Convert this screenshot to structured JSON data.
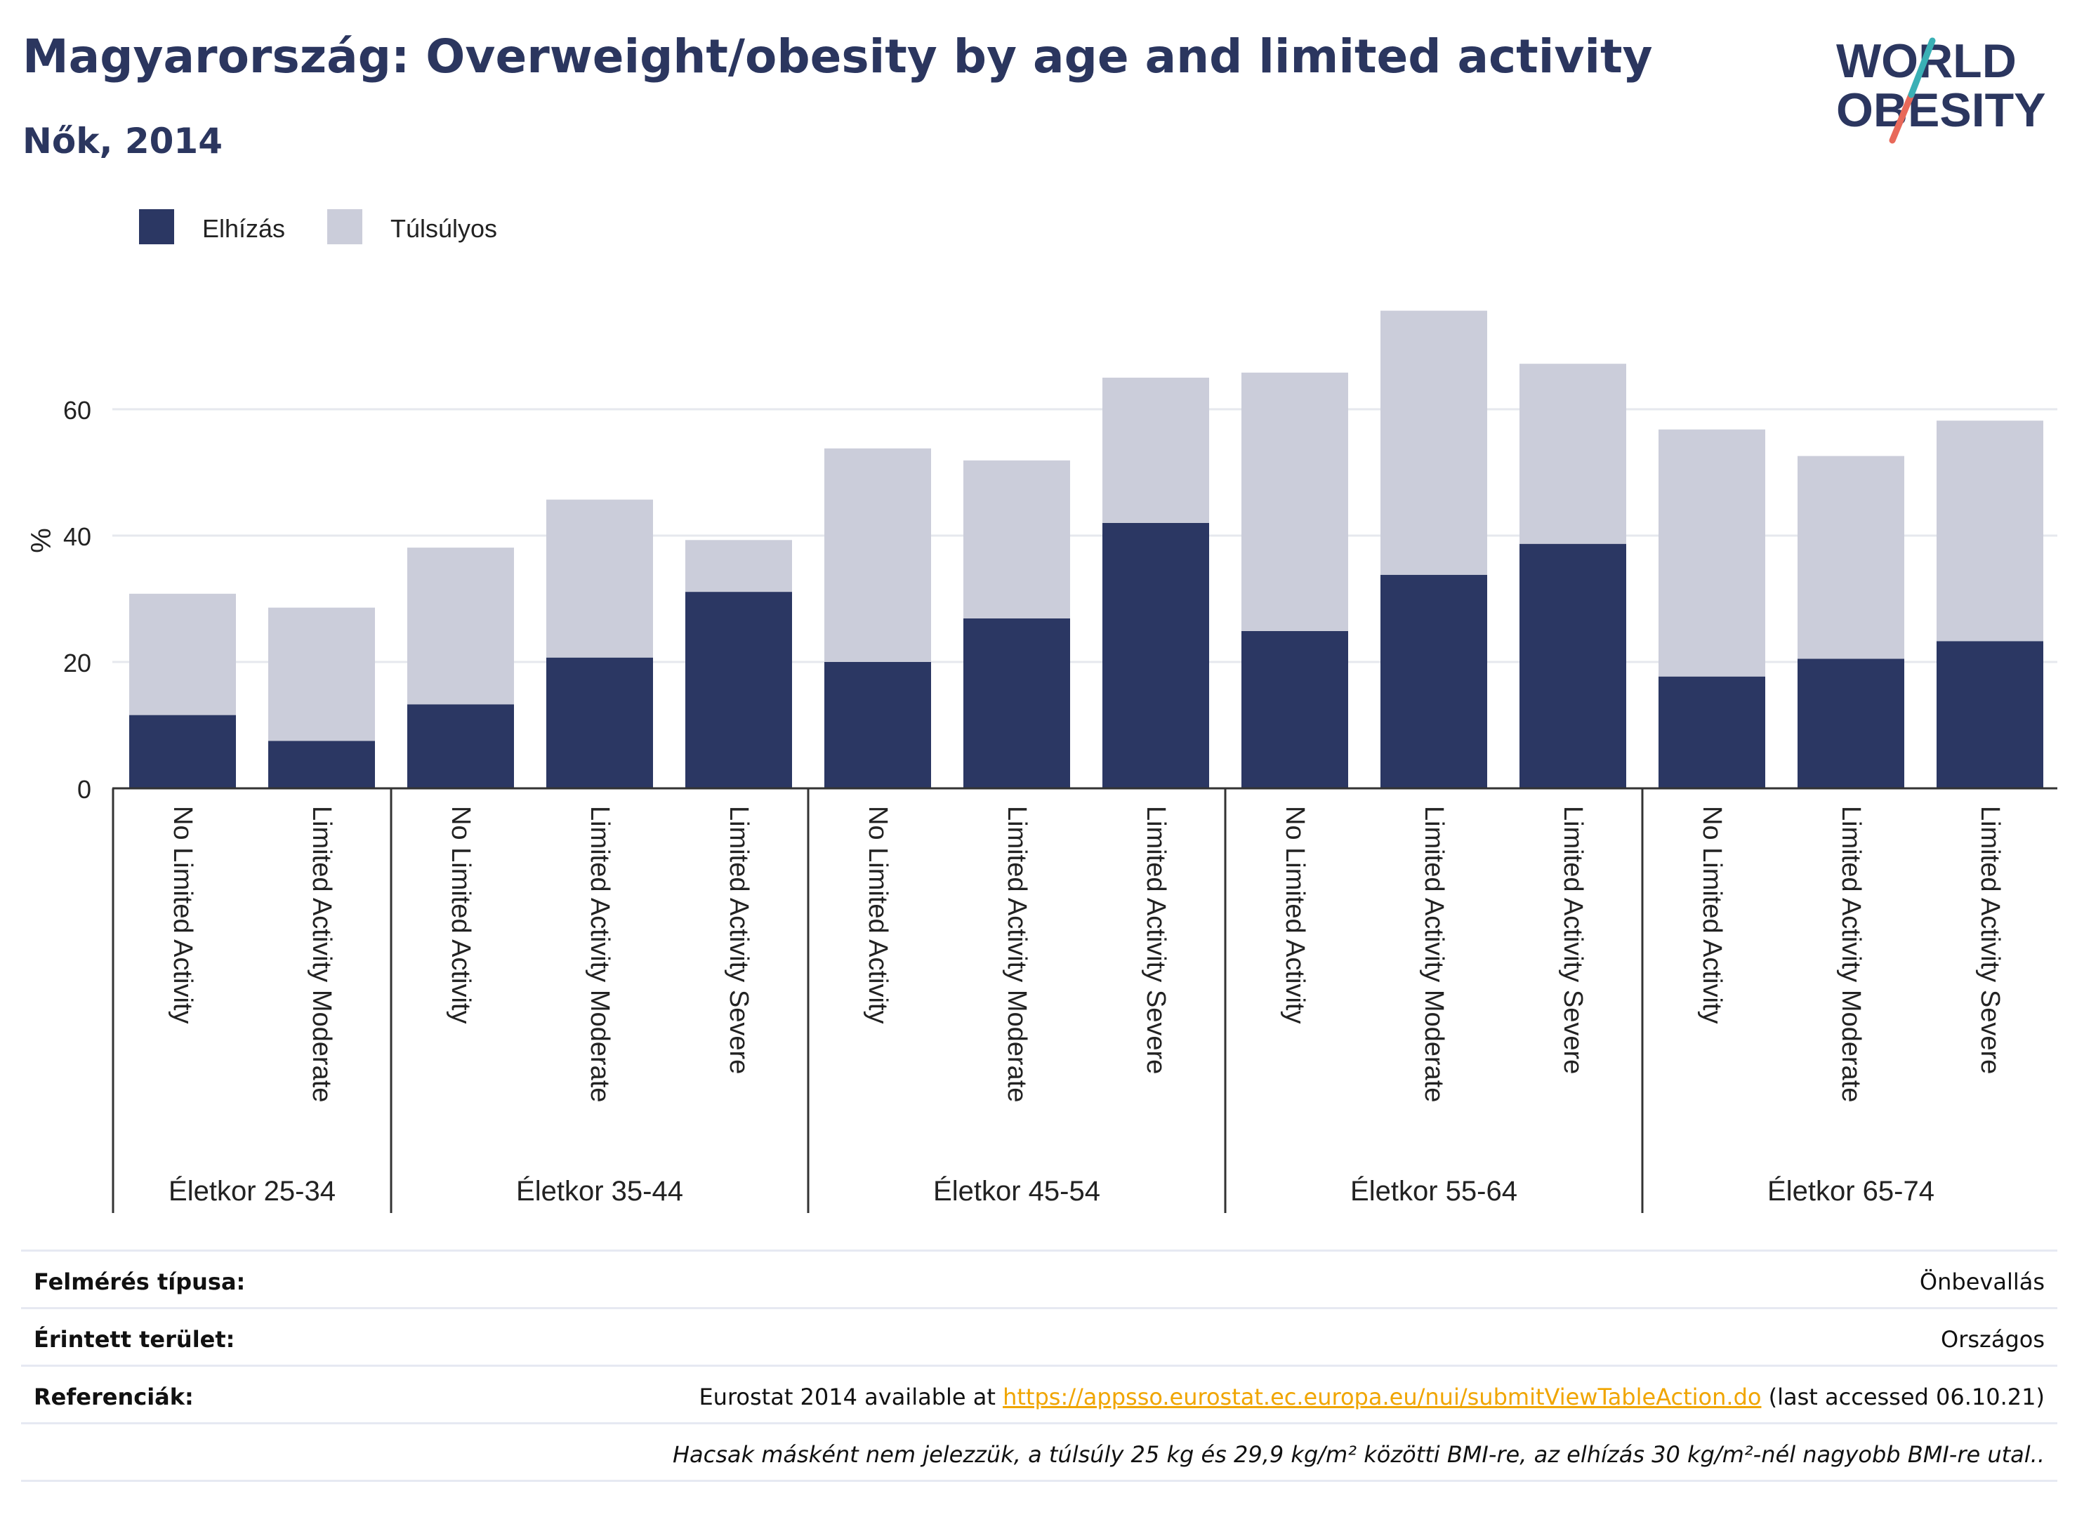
{
  "header": {
    "title": "Magyarország: Overweight/obesity by age and limited activity",
    "subtitle": "Nők, 2014",
    "logo_line1": "WORLD",
    "logo_line2": "OBESITY"
  },
  "colors": {
    "obese": "#2b3763",
    "overweight": "#cbcdda",
    "text": "#2b365f",
    "link": "#f0a500"
  },
  "chart_data": {
    "type": "bar",
    "stacked": true,
    "ylabel": "%",
    "xlabel": "",
    "ylim": [
      0,
      78
    ],
    "yticks": [
      0,
      20,
      40,
      60
    ],
    "grid": true,
    "legend_position": "top-left",
    "groups": [
      {
        "label": "Életkor 25-34",
        "categories": [
          "No Limited Activity",
          "Limited Activity Moderate"
        ]
      },
      {
        "label": "Életkor 35-44",
        "categories": [
          "No Limited Activity",
          "Limited Activity Moderate",
          "Limited Activity Severe"
        ]
      },
      {
        "label": "Életkor 45-54",
        "categories": [
          "No Limited Activity",
          "Limited Activity Moderate",
          "Limited Activity Severe"
        ]
      },
      {
        "label": "Életkor 55-64",
        "categories": [
          "No Limited Activity",
          "Limited Activity Moderate",
          "Limited Activity Severe"
        ]
      },
      {
        "label": "Életkor 65-74",
        "categories": [
          "No Limited Activity",
          "Limited Activity Moderate",
          "Limited Activity Severe"
        ]
      }
    ],
    "series": [
      {
        "name": "Elhízás",
        "color": "#2b3763",
        "values": [
          11.6,
          7.5,
          13.3,
          20.7,
          31.1,
          20.0,
          26.9,
          42.0,
          24.9,
          33.8,
          38.7,
          17.7,
          20.5,
          23.3
        ]
      },
      {
        "name": "Túlsúlyos",
        "color": "#cbcdda",
        "values": [
          19.2,
          21.1,
          24.8,
          25.0,
          8.2,
          33.8,
          25.0,
          23.0,
          40.9,
          41.8,
          28.5,
          39.1,
          32.1,
          34.9
        ]
      }
    ]
  },
  "table": {
    "rows": [
      {
        "label": "Felmérés típusa:",
        "value": "Önbevallás"
      },
      {
        "label": "Érintett terület:",
        "value": "Országos"
      },
      {
        "label": "Referenciák:",
        "value_prefix": "Eurostat 2014 available at ",
        "link": "https://appsso.eurostat.ec.europa.eu/nui/submitViewTableAction.do",
        "value_suffix": " (last accessed 06.10.21)"
      }
    ],
    "note": "Hacsak másként nem jelezzük, a túlsúly 25 kg és 29,9 kg/m² közötti BMI-re, az elhízás 30 kg/m²-nél nagyobb BMI-re utal.."
  }
}
